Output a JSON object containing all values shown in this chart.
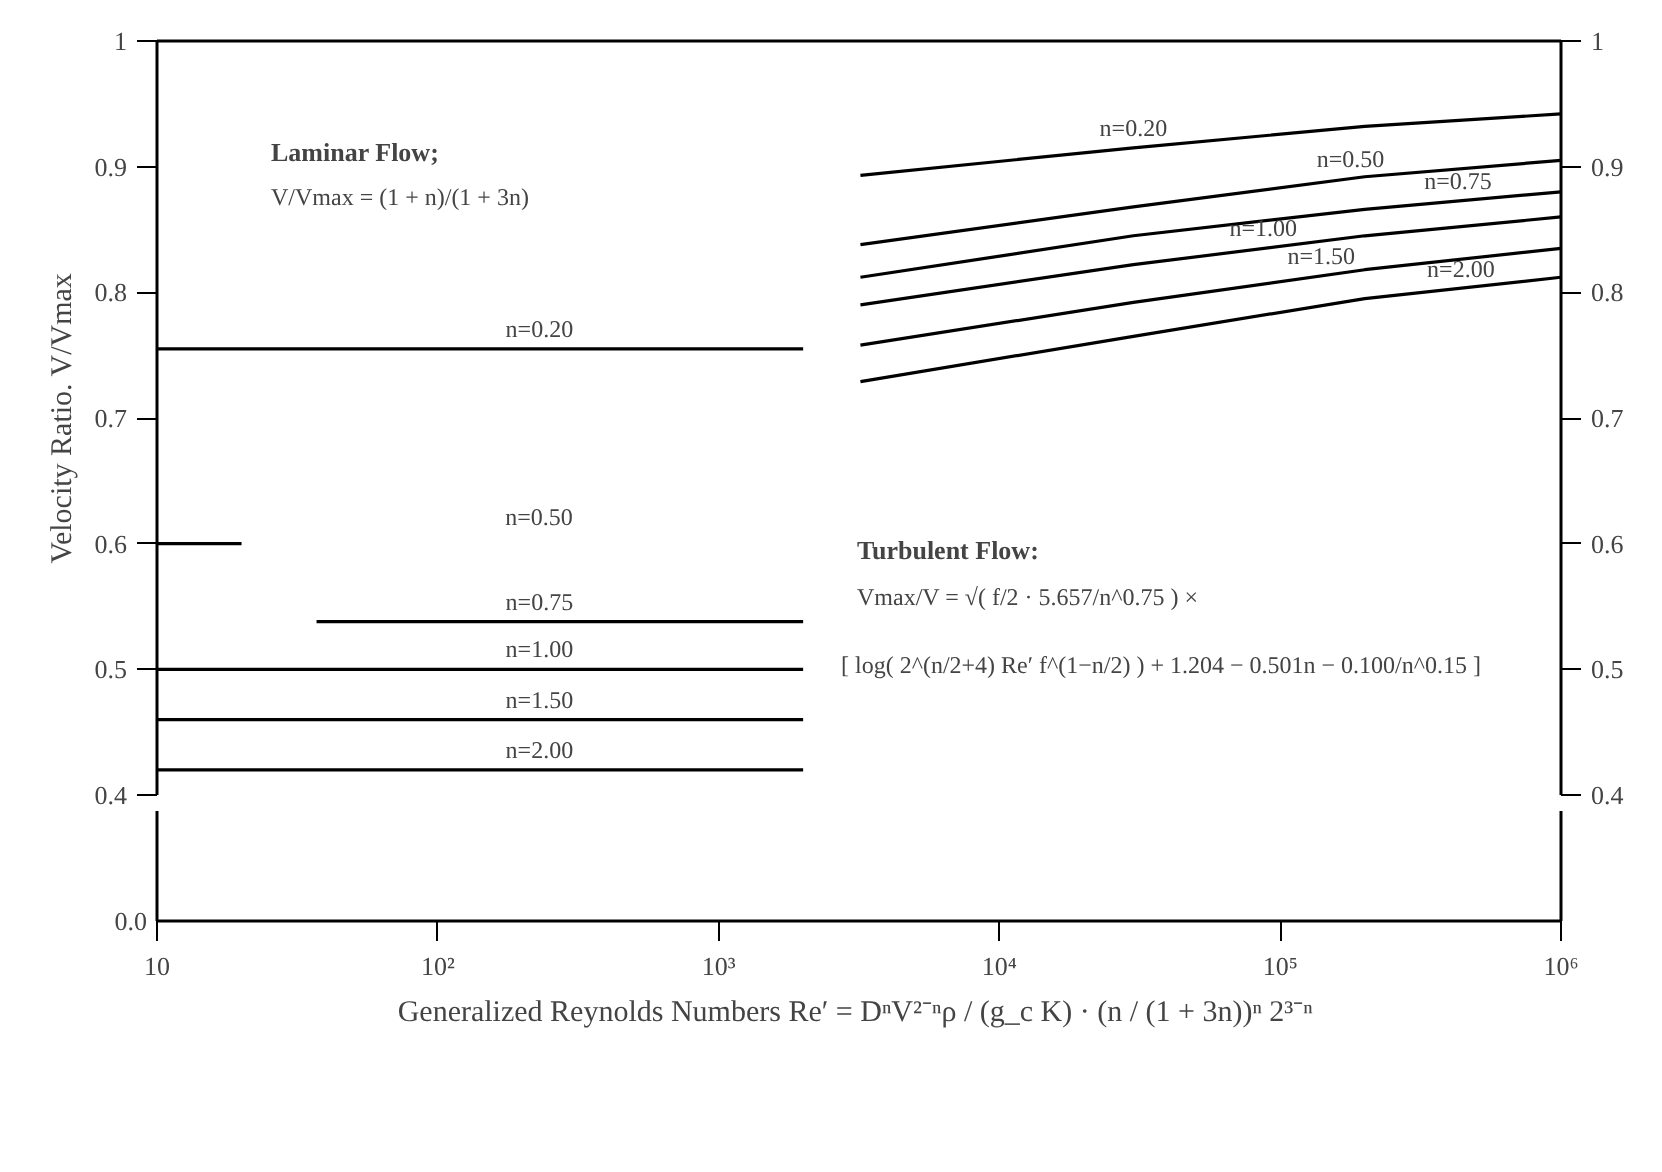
{
  "chart_data": {
    "type": "line",
    "ylabel": "Velocity Ratio. V/Vmax",
    "xlabel": "Generalized Reynolds Numbers  Re′ = DⁿV²⁻ⁿρ / (g_c K) · (n / (1 + 3n))ⁿ 2³⁻ⁿ",
    "log": "x",
    "grid": false,
    "marker": "none",
    "line_style": "solid",
    "xlim": [
      10,
      1000000
    ],
    "xticks": [
      {
        "value": 10,
        "label": "10"
      },
      {
        "value": 100,
        "label": "10²"
      },
      {
        "value": 1000,
        "label": "10³"
      },
      {
        "value": 10000,
        "label": "10⁴"
      },
      {
        "value": 100000,
        "label": "10⁵"
      },
      {
        "value": 1000000,
        "label": "10⁶"
      }
    ],
    "ylim": [
      0.4,
      1
    ],
    "yticks": [
      0.4,
      0.5,
      0.6,
      0.7,
      0.8,
      0.9,
      1
    ],
    "y2lim": [
      0.4,
      1
    ],
    "y2ticks": [
      0.4,
      0.5,
      0.6,
      0.7,
      0.8,
      0.9,
      1
    ],
    "series": [
      {
        "color": "#000000",
        "x": [
          10,
          2000
        ],
        "values": [
          0.755,
          0.755
        ]
      },
      {
        "color": "#000000",
        "x": [
          10,
          20
        ],
        "values": [
          0.6,
          0.6
        ]
      },
      {
        "color": "#000000",
        "x": [
          37,
          2000
        ],
        "values": [
          0.538,
          0.538
        ]
      },
      {
        "color": "#000000",
        "x": [
          10,
          2000
        ],
        "values": [
          0.5,
          0.5
        ]
      },
      {
        "color": "#000000",
        "x": [
          10,
          2000
        ],
        "values": [
          0.46,
          0.46
        ]
      },
      {
        "color": "#000000",
        "x": [
          10,
          2000
        ],
        "values": [
          0.42,
          0.42
        ]
      },
      {
        "color": "#000000",
        "x": [
          3200,
          30000,
          200000,
          1000000
        ],
        "values": [
          0.893,
          0.915,
          0.932,
          0.942
        ]
      },
      {
        "color": "#000000",
        "x": [
          3200,
          30000,
          200000,
          1000000
        ],
        "values": [
          0.838,
          0.868,
          0.892,
          0.905
        ]
      },
      {
        "color": "#000000",
        "x": [
          3200,
          30000,
          200000,
          1000000
        ],
        "values": [
          0.812,
          0.845,
          0.866,
          0.88
        ]
      },
      {
        "color": "#000000",
        "x": [
          3200,
          30000,
          200000,
          1000000
        ],
        "values": [
          0.79,
          0.822,
          0.845,
          0.86
        ]
      },
      {
        "color": "#000000",
        "x": [
          3200,
          30000,
          200000,
          1000000
        ],
        "values": [
          0.758,
          0.792,
          0.818,
          0.835
        ]
      },
      {
        "color": "#000000",
        "x": [
          3200,
          30000,
          200000,
          1000000
        ],
        "values": [
          0.729,
          0.765,
          0.795,
          0.812
        ]
      }
    ],
    "annotations": [
      "Laminar Flow;",
      "V/Vmax = (1 + n)/(1 + 3n)",
      "Turbulent Flow:",
      "Vmax/V = √( f/2 · 5.657/n^0.75 ) ×",
      "[ log( 2^(n/2+4) Re′ f^(1−n/2) ) + 1.204 − 0.501n − 0.100/n^0.15 ]",
      "n=0.50",
      "0.0",
      {
        "text": "n=0.20",
        "x": 230,
        "y": 0.755
      },
      {
        "text": "n=0.75",
        "x": 230,
        "y": 0.538
      },
      {
        "text": "n=1.00",
        "x": 230,
        "y": 0.5
      },
      {
        "text": "n=1.50",
        "x": 230,
        "y": 0.46
      },
      {
        "text": "n=2.00",
        "x": 230,
        "y": 0.42
      },
      {
        "text": "n=0.20",
        "x": 30000,
        "y": 0.915
      },
      {
        "text": "n=0.50",
        "x": 178000,
        "y": 0.89
      },
      {
        "text": "n=0.75",
        "x": 430000,
        "y": 0.873
      },
      {
        "text": "n=1.00",
        "x": 87000,
        "y": 0.835
      },
      {
        "text": "n=1.50",
        "x": 140000,
        "y": 0.813
      },
      {
        "text": "n=2.00",
        "x": 440000,
        "y": 0.803
      }
    ]
  }
}
